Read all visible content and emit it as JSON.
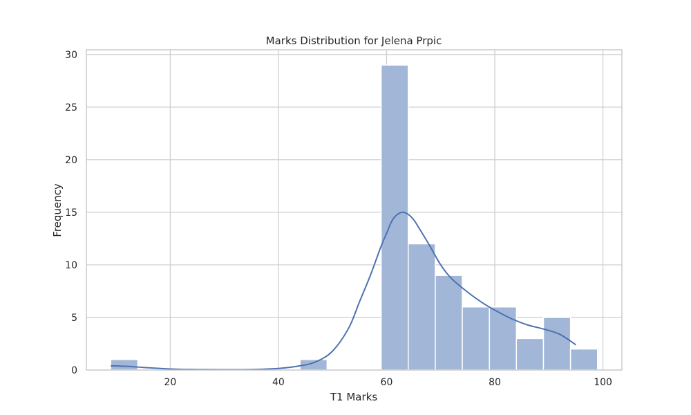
{
  "chart_data": {
    "type": "histogram",
    "title": "Marks Distribution for Jelena Prpic",
    "xlabel": "T1 Marks",
    "ylabel": "Frequency",
    "xlim": [
      4.5,
      103.5
    ],
    "ylim": [
      0,
      30.45
    ],
    "xticks": [
      20,
      40,
      60,
      80,
      100
    ],
    "yticks": [
      0,
      5,
      10,
      15,
      20,
      25,
      30
    ],
    "grid": true,
    "bins": [
      {
        "start": 9,
        "end": 14,
        "count": 1
      },
      {
        "start": 14,
        "end": 19,
        "count": 0
      },
      {
        "start": 19,
        "end": 24,
        "count": 0
      },
      {
        "start": 24,
        "end": 29,
        "count": 0
      },
      {
        "start": 29,
        "end": 34,
        "count": 0
      },
      {
        "start": 34,
        "end": 39,
        "count": 0
      },
      {
        "start": 39,
        "end": 44,
        "count": 0
      },
      {
        "start": 44,
        "end": 49,
        "count": 1
      },
      {
        "start": 49,
        "end": 54,
        "count": 0
      },
      {
        "start": 54,
        "end": 59,
        "count": 0
      },
      {
        "start": 59,
        "end": 64,
        "count": 29
      },
      {
        "start": 64,
        "end": 69,
        "count": 12
      },
      {
        "start": 69,
        "end": 74,
        "count": 9
      },
      {
        "start": 74,
        "end": 79,
        "count": 6
      },
      {
        "start": 79,
        "end": 84,
        "count": 6
      },
      {
        "start": 84,
        "end": 89,
        "count": 3
      },
      {
        "start": 89,
        "end": 94,
        "count": 5
      },
      {
        "start": 94,
        "end": 99,
        "count": 2
      }
    ],
    "kde": {
      "x": [
        9,
        12,
        15,
        20,
        25,
        30,
        35,
        40,
        44,
        47,
        50,
        53,
        55,
        57,
        59,
        60,
        61,
        62,
        63,
        64,
        65,
        66,
        68,
        70,
        72,
        75,
        78,
        80,
        83,
        86,
        89,
        92,
        95
      ],
      "y": [
        0.4,
        0.35,
        0.25,
        0.1,
        0.05,
        0.03,
        0.05,
        0.15,
        0.4,
        0.8,
        1.8,
        4.0,
        6.5,
        9.0,
        11.8,
        13.0,
        14.2,
        14.8,
        15.0,
        14.8,
        14.3,
        13.5,
        11.8,
        10.0,
        8.7,
        7.4,
        6.3,
        5.7,
        4.9,
        4.3,
        3.9,
        3.4,
        2.4
      ]
    },
    "colors": {
      "bar_fill": "#a2b6d7",
      "bar_edge": "#ffffff",
      "kde_line": "#4c72b0",
      "grid": "#cccccc",
      "frame": "#cccccc"
    }
  }
}
